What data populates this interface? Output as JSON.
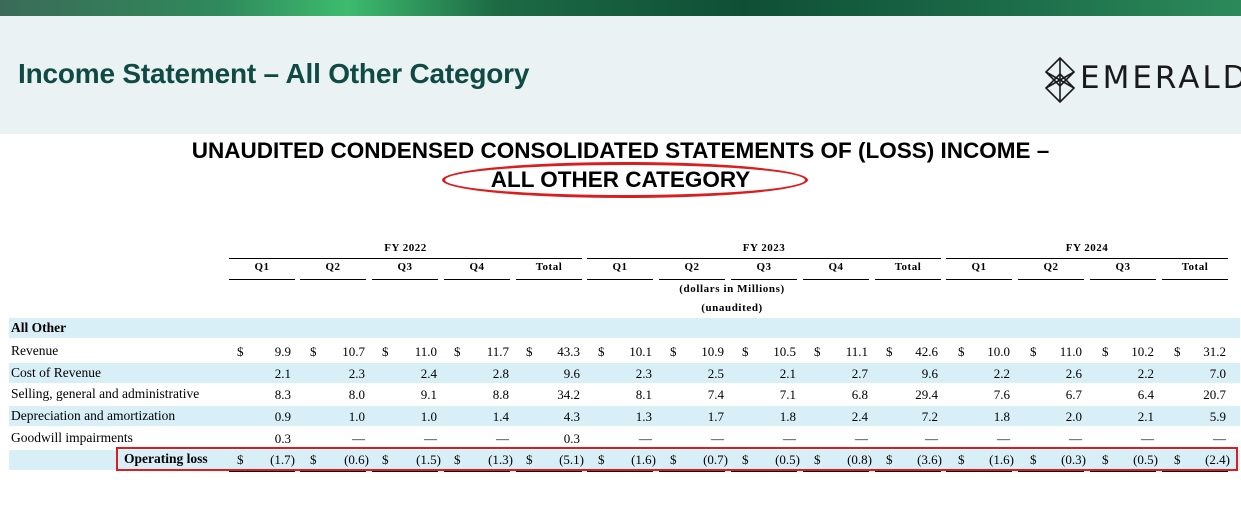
{
  "slide": {
    "title": "Income Statement – All Other Category",
    "logo_text": "EMERALD",
    "heading_line1": "UNAUDITED CONDENSED CONSOLIDATED STATEMENTS OF (LOSS) INCOME –",
    "heading_line2": "ALL OTHER CATEGORY",
    "accent_color": "#0f4b44",
    "highlight_color": "#d81e1e"
  },
  "table": {
    "fiscal_years": [
      "FY 2022",
      "FY 2023",
      "FY 2024"
    ],
    "columns": [
      "Q1",
      "Q2",
      "Q3",
      "Q4",
      "Total",
      "Q1",
      "Q2",
      "Q3",
      "Q4",
      "Total",
      "Q1",
      "Q2",
      "Q3",
      "Total"
    ],
    "unit_note": "(dollars in Millions)",
    "audit_note": "(unaudited)",
    "section": "All Other",
    "currency_symbol": "$",
    "rows": [
      {
        "label": "Revenue",
        "values": [
          "9.9",
          "10.7",
          "11.0",
          "11.7",
          "43.3",
          "10.1",
          "10.9",
          "10.5",
          "11.1",
          "42.6",
          "10.0",
          "11.0",
          "10.2",
          "31.2"
        ]
      },
      {
        "label": "Cost of Revenue",
        "values": [
          "2.1",
          "2.3",
          "2.4",
          "2.8",
          "9.6",
          "2.3",
          "2.5",
          "2.1",
          "2.7",
          "9.6",
          "2.2",
          "2.6",
          "2.2",
          "7.0"
        ]
      },
      {
        "label": "Selling, general and administrative",
        "values": [
          "8.3",
          "8.0",
          "9.1",
          "8.8",
          "34.2",
          "8.1",
          "7.4",
          "7.1",
          "6.8",
          "29.4",
          "7.6",
          "6.7",
          "6.4",
          "20.7"
        ]
      },
      {
        "label": "Depreciation and amortization",
        "values": [
          "0.9",
          "1.0",
          "1.0",
          "1.4",
          "4.3",
          "1.3",
          "1.7",
          "1.8",
          "2.4",
          "7.2",
          "1.8",
          "2.0",
          "2.1",
          "5.9"
        ]
      },
      {
        "label": "Goodwill impairments",
        "values": [
          "0.3",
          "—",
          "—",
          "—",
          "0.3",
          "—",
          "—",
          "—",
          "—",
          "—",
          "—",
          "—",
          "—",
          "—"
        ]
      }
    ],
    "total_row": {
      "label": "Operating loss",
      "values": [
        "(1.7)",
        "(0.6)",
        "(1.5)",
        "(1.3)",
        "(5.1)",
        "(1.6)",
        "(0.7)",
        "(0.5)",
        "(0.8)",
        "(3.6)",
        "(1.6)",
        "(0.3)",
        "(0.5)",
        "(2.4)"
      ]
    }
  }
}
